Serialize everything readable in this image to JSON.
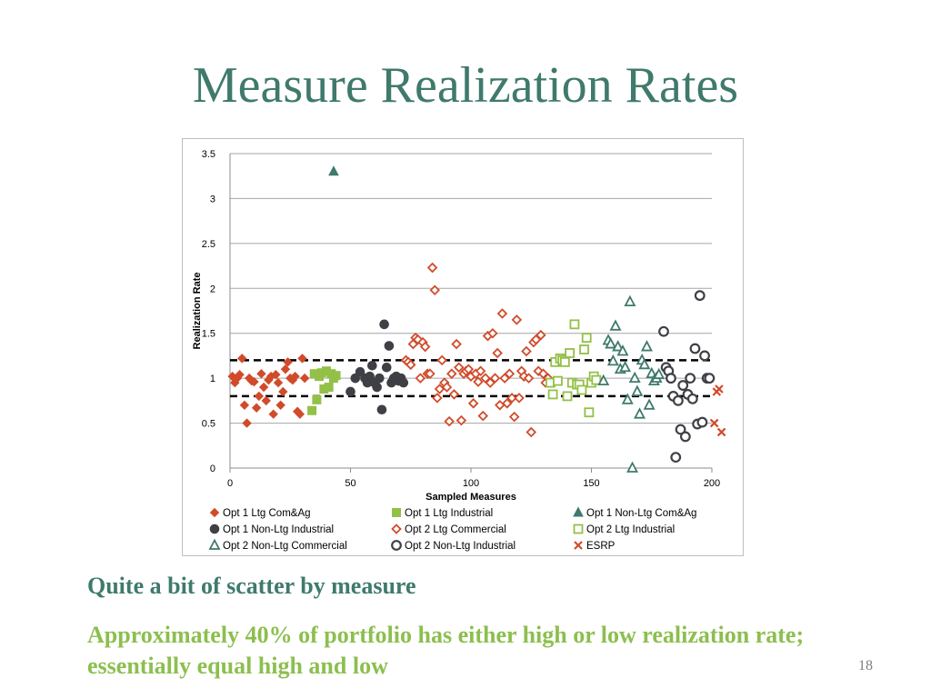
{
  "slide": {
    "title": "Measure Realization Rates",
    "bullet_1": "Quite a bit of scatter by measure",
    "bullet_2": "Approximately 40% of portfolio has either high or low realization rate; essentially equal high and low",
    "page_number": "18"
  },
  "colors": {
    "title": "#3f7a6c",
    "bullet_2": "#8cbf4e",
    "com_ag": "#d14b2b",
    "industrial_ltg": "#93c047",
    "non_ltg_com": "#3f7a6c",
    "non_ltg_ind": "#3f3f46",
    "esrp": "#d14b2b"
  },
  "chart_data": {
    "type": "scatter",
    "xlabel": "Sampled Measures",
    "ylabel": "Realization Rate",
    "xlim": [
      0,
      200
    ],
    "ylim": [
      0,
      3.5
    ],
    "xticks": [
      0,
      50,
      100,
      150,
      200
    ],
    "yticks": [
      0,
      0.5,
      1,
      1.5,
      2,
      2.5,
      3,
      3.5
    ],
    "ytick_labels": [
      "0",
      "0.5",
      "1",
      "1.5",
      "2",
      "2.5",
      "3",
      "3.5"
    ],
    "grid": true,
    "reference_lines": [
      1.2,
      0.8
    ],
    "legend_position": "bottom",
    "series": [
      {
        "name": "Opt 1 Ltg Com&Ag",
        "marker": "diamond",
        "filled": true,
        "color": "#d14b2b",
        "x": [
          1,
          2,
          3,
          4,
          5,
          6,
          7,
          8,
          9,
          10,
          11,
          12,
          13,
          14,
          15,
          16,
          17,
          18,
          19,
          20,
          21,
          22,
          23,
          24,
          25,
          26,
          27,
          28,
          29,
          30,
          31
        ],
        "y": [
          1.02,
          0.95,
          1.0,
          1.04,
          1.22,
          0.7,
          0.5,
          1.0,
          0.97,
          0.96,
          0.67,
          0.8,
          1.05,
          0.9,
          0.75,
          0.98,
          1.02,
          0.6,
          1.04,
          0.95,
          0.7,
          0.85,
          1.1,
          1.18,
          1.0,
          0.98,
          1.02,
          0.63,
          0.6,
          1.22,
          1.0
        ]
      },
      {
        "name": "Opt 1 Ltg Industrial",
        "marker": "square",
        "filled": true,
        "color": "#93c047",
        "x": [
          34,
          35,
          36,
          37,
          38,
          39,
          40,
          41,
          42,
          43,
          44
        ],
        "y": [
          0.64,
          1.05,
          0.76,
          1.02,
          1.06,
          0.88,
          1.08,
          0.9,
          1.05,
          1.0,
          1.03
        ]
      },
      {
        "name": "Opt 1 Non-Ltg Com&Ag",
        "marker": "triangle",
        "filled": true,
        "color": "#3f7a6c",
        "x": [
          43
        ],
        "y": [
          3.3
        ]
      },
      {
        "name": "Opt 1 Non-Ltg Industrial",
        "marker": "circle",
        "filled": true,
        "color": "#3f3f46",
        "x": [
          50,
          52,
          54,
          56,
          57,
          58,
          59,
          60,
          61,
          62,
          63,
          64,
          65,
          66,
          67,
          68,
          69,
          70,
          71,
          72
        ],
        "y": [
          0.85,
          1.0,
          1.07,
          1.0,
          0.95,
          1.02,
          1.14,
          0.95,
          0.9,
          1.0,
          0.65,
          1.6,
          1.12,
          1.36,
          0.95,
          1.0,
          1.02,
          0.97,
          1.0,
          0.95
        ]
      },
      {
        "name": "Opt 2 Ltg Commercial",
        "marker": "diamond",
        "filled": false,
        "color": "#d14b2b",
        "x": [
          73,
          74,
          75,
          76,
          77,
          78,
          79,
          80,
          81,
          82,
          83,
          84,
          85,
          86,
          87,
          88,
          89,
          90,
          91,
          92,
          93,
          94,
          95,
          96,
          97,
          98,
          99,
          100,
          101,
          102,
          103,
          104,
          105,
          106,
          107,
          108,
          109,
          110,
          111,
          112,
          113,
          114,
          115,
          116,
          117,
          118,
          119,
          120,
          121,
          122,
          123,
          124,
          125,
          126,
          127,
          128,
          129,
          130,
          131,
          132
        ],
        "y": [
          1.2,
          1.18,
          1.15,
          1.38,
          1.45,
          1.43,
          1.0,
          1.4,
          1.35,
          1.05,
          1.05,
          2.23,
          1.98,
          0.78,
          0.88,
          1.2,
          0.95,
          0.9,
          0.52,
          1.05,
          0.82,
          1.38,
          1.12,
          0.53,
          1.05,
          1.08,
          1.1,
          1.02,
          0.72,
          1.05,
          0.96,
          1.08,
          0.58,
          1.0,
          1.47,
          0.95,
          1.5,
          1.0,
          1.28,
          0.7,
          1.72,
          1.0,
          0.72,
          1.05,
          0.78,
          0.57,
          1.65,
          0.78,
          1.08,
          1.02,
          1.3,
          1.0,
          0.4,
          1.4,
          1.43,
          1.08,
          1.48,
          1.05,
          0.95,
          1.0
        ]
      },
      {
        "name": "Opt 2 Ltg Industrial",
        "marker": "square",
        "filled": false,
        "color": "#93c047",
        "x": [
          133,
          134,
          135,
          136,
          137,
          138,
          139,
          140,
          141,
          142,
          143,
          144,
          145,
          146,
          147,
          148,
          149,
          150,
          151,
          152
        ],
        "y": [
          0.95,
          0.82,
          1.18,
          0.97,
          1.22,
          1.2,
          1.18,
          0.8,
          1.28,
          0.95,
          1.6,
          0.93,
          0.93,
          0.87,
          1.32,
          1.45,
          0.62,
          0.95,
          1.02,
          0.98
        ]
      },
      {
        "name": "Opt 2 Non-Ltg Commercial",
        "marker": "triangle",
        "filled": false,
        "color": "#3f7a6c",
        "x": [
          155,
          157,
          158,
          159,
          160,
          161,
          162,
          163,
          164,
          165,
          166,
          167,
          168,
          169,
          170,
          171,
          172,
          173,
          174,
          175,
          176,
          177,
          178
        ],
        "y": [
          0.97,
          1.42,
          1.38,
          1.19,
          1.58,
          1.35,
          1.1,
          1.3,
          1.12,
          0.76,
          1.85,
          0.0,
          1.0,
          0.85,
          0.6,
          1.2,
          1.15,
          1.35,
          0.7,
          1.05,
          0.97,
          1.0,
          1.04
        ]
      },
      {
        "name": "Opt 2 Non-Ltg Industrial",
        "marker": "circle",
        "filled": false,
        "color": "#3f3f46",
        "x": [
          180,
          181,
          182,
          183,
          184,
          185,
          186,
          187,
          188,
          189,
          190,
          191,
          192,
          193,
          194,
          195,
          196,
          197,
          198,
          199
        ],
        "y": [
          1.52,
          1.12,
          1.08,
          1.0,
          0.8,
          0.12,
          0.75,
          0.43,
          0.92,
          0.35,
          0.82,
          1.0,
          0.77,
          1.33,
          0.49,
          1.92,
          0.51,
          1.25,
          1.0,
          1.0
        ]
      },
      {
        "name": "ESRP",
        "marker": "x",
        "filled": false,
        "color": "#d14b2b",
        "x": [
          201,
          202,
          203,
          204
        ],
        "y": [
          0.5,
          0.85,
          0.88,
          0.4
        ]
      }
    ]
  }
}
